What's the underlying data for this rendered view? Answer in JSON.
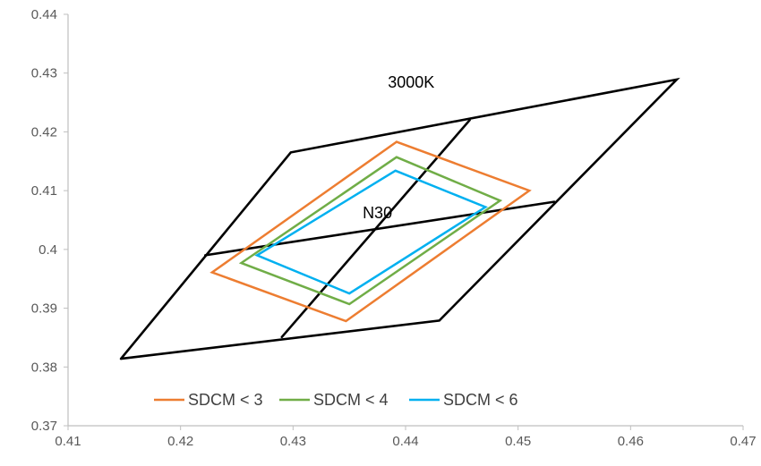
{
  "chart_data": {
    "type": "scatter",
    "title": "",
    "xlabel": "",
    "ylabel": "",
    "xlim": [
      0.41,
      0.47
    ],
    "ylim": [
      0.37,
      0.44
    ],
    "x_ticks": [
      "0.41",
      "0.42",
      "0.43",
      "0.44",
      "0.45",
      "0.46",
      "0.47"
    ],
    "y_ticks": [
      "0.37",
      "0.38",
      "0.39",
      "0.4",
      "0.41",
      "0.42",
      "0.43",
      "0.44"
    ],
    "grid": false,
    "legend_position": "bottom-left",
    "annotations": [
      {
        "text": "3000K",
        "x": 0.4405,
        "y": 0.4275
      },
      {
        "text": "N30",
        "x": 0.4375,
        "y": 0.4053
      }
    ],
    "series": [
      {
        "color": "#000000",
        "role": "3000K quadrangle",
        "points": [
          [
            0.4147,
            0.3814
          ],
          [
            0.4298,
            0.4165
          ],
          [
            0.4641,
            0.4289
          ],
          [
            0.443,
            0.3879
          ],
          [
            0.4147,
            0.3814
          ]
        ]
      },
      {
        "color": "#000000",
        "role": "center line horizontal",
        "points": [
          [
            0.4222,
            0.399
          ],
          [
            0.4532,
            0.4081
          ]
        ]
      },
      {
        "color": "#000000",
        "role": "center line vertical",
        "points": [
          [
            0.429,
            0.3851
          ],
          [
            0.4457,
            0.422
          ]
        ]
      },
      {
        "name": "SDCM < 3",
        "color": "#ED7D31",
        "points": [
          [
            0.4392,
            0.4183
          ],
          [
            0.451,
            0.41
          ],
          [
            0.4347,
            0.3878
          ],
          [
            0.4228,
            0.3961
          ],
          [
            0.4392,
            0.4183
          ]
        ]
      },
      {
        "name": "SDCM < 4",
        "color": "#70AD47",
        "points": [
          [
            0.4392,
            0.4157
          ],
          [
            0.4484,
            0.4083
          ],
          [
            0.435,
            0.3907
          ],
          [
            0.4254,
            0.3977
          ],
          [
            0.4392,
            0.4157
          ]
        ]
      },
      {
        "name": "SDCM < 6",
        "color": "#00B0F0",
        "points": [
          [
            0.4391,
            0.4134
          ],
          [
            0.4471,
            0.4072
          ],
          [
            0.435,
            0.3925
          ],
          [
            0.4268,
            0.399
          ],
          [
            0.4391,
            0.4134
          ]
        ]
      }
    ]
  }
}
